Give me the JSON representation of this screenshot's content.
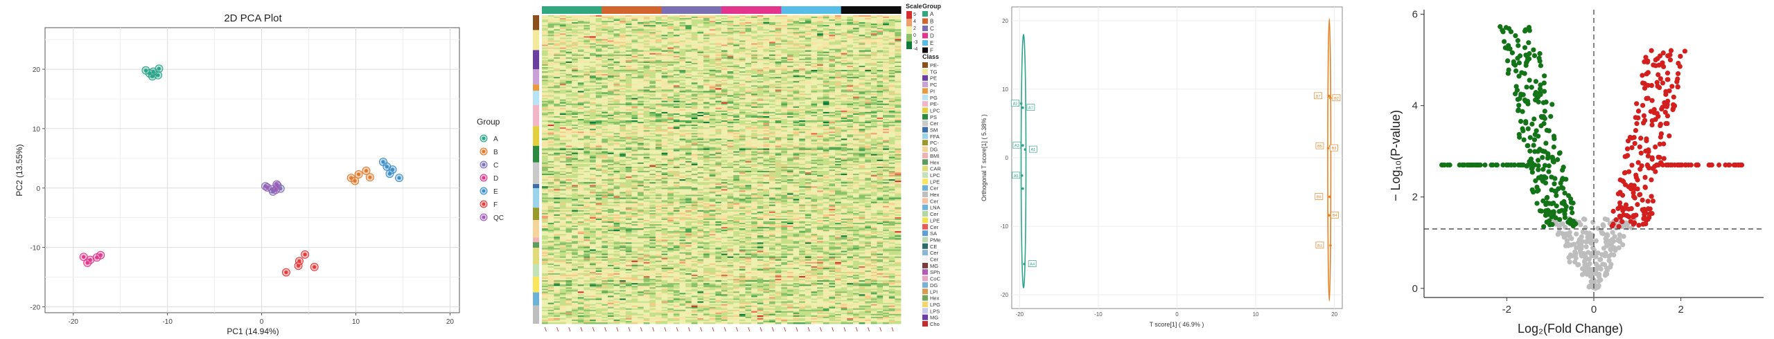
{
  "colors": {
    "A": "#2ca48a",
    "B": "#e07b2e",
    "C": "#7e72b4",
    "D": "#e0388c",
    "E": "#3d8ec7",
    "F": "#e23b3b",
    "QC": "#9d5cb6",
    "heat_groups": [
      "#2fa77f",
      "#d2642e",
      "#7b6fb3",
      "#e2358b",
      "#55bde6",
      "#0d0d0d"
    ],
    "opls_left": "#2ca48a",
    "opls_right": "#e38325",
    "volcano_up": "#d41f1f",
    "volcano_down": "#137417",
    "volcano_ns": "#bdbdbd"
  },
  "chart_data": [
    {
      "type": "scatter",
      "title": "2D PCA Plot",
      "xlabel": "PC1 (14.94%)",
      "ylabel": "PC2 (13.55%)",
      "xlim": [
        -23,
        21
      ],
      "ylim": [
        -21,
        27
      ],
      "xticks": [
        "-20",
        "-10",
        "0",
        "10",
        "20"
      ],
      "yticks": [
        "-20",
        "-10",
        "0",
        "10",
        "20"
      ],
      "grid": true,
      "legend": {
        "title": "Group",
        "position": "right",
        "entries": [
          "A",
          "B",
          "C",
          "D",
          "E",
          "F",
          "QC"
        ]
      },
      "series": [
        {
          "name": "A",
          "x": [
            -12.3,
            -11.5,
            -10.9,
            -11.9,
            -11.6,
            -11.0
          ],
          "y": [
            19.8,
            19.6,
            20.1,
            19.3,
            18.8,
            19.0
          ]
        },
        {
          "name": "B",
          "x": [
            9.5,
            10.3,
            11.1,
            11.5,
            9.9
          ],
          "y": [
            1.7,
            2.3,
            2.9,
            1.8,
            1.2
          ]
        },
        {
          "name": "C",
          "x": [
            0.4,
            1.1,
            1.7,
            2.0,
            1.2
          ],
          "y": [
            0.3,
            -0.2,
            0.4,
            -0.1,
            -0.6
          ]
        },
        {
          "name": "D",
          "x": [
            -18.9,
            -18.2,
            -17.5,
            -17.1,
            -18.5
          ],
          "y": [
            -11.6,
            -12.1,
            -11.7,
            -11.3,
            -12.6
          ]
        },
        {
          "name": "E",
          "x": [
            12.9,
            13.3,
            13.9,
            14.6,
            13.6
          ],
          "y": [
            4.4,
            3.6,
            3.1,
            1.7,
            2.4
          ]
        },
        {
          "name": "F",
          "x": [
            2.6,
            4.0,
            4.6,
            5.6,
            3.9
          ],
          "y": [
            -14.2,
            -12.3,
            -11.2,
            -13.3,
            -13.1
          ]
        },
        {
          "name": "QC",
          "x": [
            0.6,
            1.5,
            1.6
          ],
          "y": [
            0.1,
            -0.3,
            0.6
          ]
        }
      ]
    },
    {
      "type": "heatmap",
      "legend_titles": {
        "scale": "Scale",
        "group": "Group",
        "class": "Class"
      },
      "scale_ticks": [
        "5",
        "4",
        "2",
        "0",
        "-3",
        "-4"
      ],
      "group_entries": [
        "A",
        "B",
        "C",
        "D",
        "E",
        "F"
      ],
      "class_entries": [
        "PE-",
        "TG",
        "PE",
        "PC",
        "PI",
        "PG",
        "PE-",
        "LPC",
        "PS",
        "Cer",
        "SM",
        "FFA",
        "PC-",
        "DG",
        "BMI",
        "Hex",
        "CAR",
        "LPC",
        "LPE",
        "Cer",
        "Hex",
        "Cer",
        "LNA",
        "Cer",
        "LPE",
        "Cer",
        "SA",
        "PMe",
        "CE",
        "Cer",
        "Cer",
        "MG",
        "SPh",
        "CoC",
        "DG",
        "LPI",
        "Hex",
        "LPG",
        "LPS",
        "MG",
        "Cho"
      ],
      "class_colors": [
        "#8b4f1c",
        "#f2ea9a",
        "#6b3fa0",
        "#c9a1d6",
        "#e89a3c",
        "#b6e3f5",
        "#f3b6c9",
        "#e3cf3c",
        "#2b8a3e",
        "#c9c9c9",
        "#3b6ea8",
        "#9bd3ea",
        "#9a9a2a",
        "#f5d49a",
        "#f0b2b2",
        "#5e9c5e",
        "#e2db7a",
        "#c2e3b5",
        "#f9e65a",
        "#6bb2d6",
        "#bfbfbf",
        "#f8c0a0",
        "#6fb3d9",
        "#b3d89f",
        "#f1e24c",
        "#e85a5a",
        "#5f9ed6",
        "#bdd9b0",
        "#2a6c6a",
        "#8bb6d9",
        "#f5f5f5",
        "#7a3b3b",
        "#b35ab3",
        "#e8a6c6",
        "#7bb0d6",
        "#d99a54",
        "#6ea85a",
        "#f4d66b",
        "#c9c9e9",
        "#6e3ca8",
        "#c22e2e"
      ]
    },
    {
      "type": "scatter",
      "xlabel": "T score[1] ( 46.9% )",
      "ylabel": "Orthogonal T score[1] ( 5.38% )",
      "xlim": [
        -21,
        21
      ],
      "ylim": [
        -22,
        22
      ],
      "xticks": [
        "-20",
        "-10",
        "0",
        "10",
        "20"
      ],
      "yticks": [
        "20",
        "10",
        "0",
        "-10",
        "-20"
      ],
      "grid": true,
      "series": [
        {
          "name": "",
          "x": [
            -19.8,
            -19.6,
            -19.6,
            -19.3,
            -19.7,
            -19.4,
            -19.6
          ],
          "y": [
            7.9,
            7.3,
            1.8,
            1.2,
            -2.6,
            -15.5,
            -4.5
          ],
          "labels": [
            "A2",
            "A7",
            "A3",
            "A1",
            "A5",
            "A4",
            ""
          ]
        },
        {
          "name": "",
          "x": [
            19.3,
            19.5,
            19.5,
            19.2,
            19.4,
            19.3,
            19.5
          ],
          "y": [
            9.0,
            8.7,
            1.7,
            1.4,
            -5.7,
            -8.4,
            -12.8
          ],
          "labels": [
            "B7",
            "B2",
            "B5",
            "B3",
            "B6",
            "B4",
            "B1"
          ]
        }
      ]
    },
    {
      "type": "scatter",
      "xlabel": "Log₂(Fold Change)",
      "ylabel": "− Log₁₀(P-value)",
      "xlim": [
        -3.9,
        3.9
      ],
      "ylim": [
        -0.2,
        6.1
      ],
      "xticks": [
        "-2",
        "0",
        "2"
      ],
      "yticks": [
        "0",
        "2",
        "4",
        "6"
      ],
      "thresholds": {
        "x": 0,
        "y": 1.3
      },
      "grid": false
    }
  ]
}
